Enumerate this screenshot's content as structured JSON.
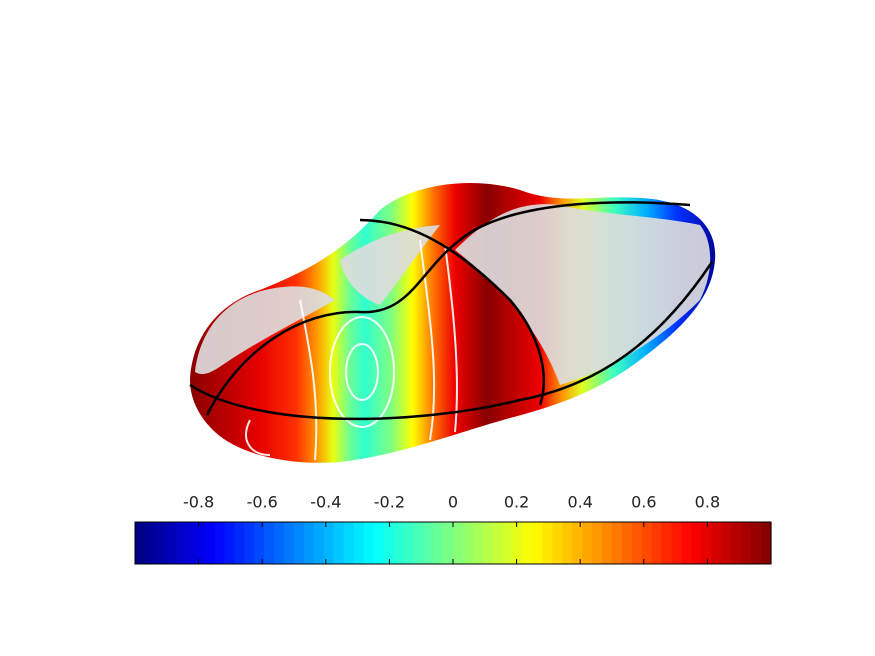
{
  "chart_data": {
    "type": "surface",
    "colormap": "jet",
    "clim": [
      -1,
      1
    ],
    "cticks": [
      -0.8,
      -0.6,
      -0.4,
      -0.2,
      0,
      0.2,
      0.4,
      0.6,
      0.8
    ]
  }
}
